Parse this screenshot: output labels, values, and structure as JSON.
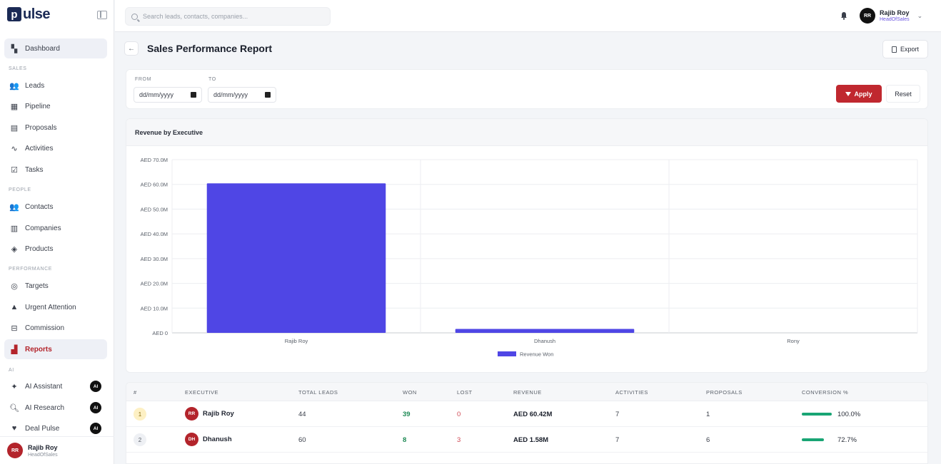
{
  "app": {
    "logo_letter": "p",
    "logo_text": "ulse"
  },
  "search": {
    "placeholder": "Search leads, contacts, companies..."
  },
  "user": {
    "initials": "RR",
    "name": "Rajib Roy",
    "role": "HeadOfSales"
  },
  "sidebar": {
    "dashboard": "Dashboard",
    "sections": {
      "sales": "SALES",
      "people": "PEOPLE",
      "performance": "PERFORMANCE",
      "ai": "AI"
    },
    "sales_items": [
      "Leads",
      "Pipeline",
      "Proposals",
      "Activities",
      "Tasks"
    ],
    "people_items": [
      "Contacts",
      "Companies",
      "Products"
    ],
    "performance_items": [
      "Targets",
      "Urgent Attention",
      "Commission",
      "Reports"
    ],
    "ai_items": [
      "AI Assistant",
      "AI Research",
      "Deal Pulse"
    ],
    "ai_badge": "AI"
  },
  "page": {
    "title": "Sales Performance Report",
    "back": "←",
    "export_label": "Export"
  },
  "filters": {
    "from_label": "FROM",
    "to_label": "TO",
    "from_value": "dd/mm/yyyy",
    "to_value": "dd/mm/yyyy",
    "apply_label": "Apply",
    "reset_label": "Reset"
  },
  "chart_card": {
    "title": "Revenue by Executive"
  },
  "chart_data": {
    "type": "bar",
    "categories": [
      "Rajib Roy",
      "Dhanush",
      "Rony"
    ],
    "series": [
      {
        "name": "Revenue Won",
        "values": [
          60.42,
          1.58,
          0
        ],
        "color": "#4f46e5"
      }
    ],
    "ylim": [
      0,
      70
    ],
    "yticks": [
      "AED 0",
      "AED 10.0M",
      "AED 20.0M",
      "AED 30.0M",
      "AED 40.0M",
      "AED 50.0M",
      "AED 60.0M",
      "AED 70.0M"
    ],
    "grid": true,
    "legend_position": "bottom"
  },
  "table": {
    "headers": [
      "#",
      "EXECUTIVE",
      "TOTAL LEADS",
      "WON",
      "LOST",
      "REVENUE",
      "ACTIVITIES",
      "PROPOSALS",
      "CONVERSION %"
    ],
    "rows": [
      {
        "rank": "1",
        "initials": "RR",
        "name": "Rajib Roy",
        "total": "44",
        "won": "39",
        "lost": "0",
        "revenue": "AED 60.42M",
        "activities": "7",
        "proposals": "1",
        "conversion": "100.0%",
        "conv_fraction": 1.0
      },
      {
        "rank": "2",
        "initials": "DH",
        "name": "Dhanush",
        "total": "60",
        "won": "8",
        "lost": "3",
        "revenue": "AED 1.58M",
        "activities": "7",
        "proposals": "6",
        "conversion": "72.7%",
        "conv_fraction": 0.727
      }
    ]
  }
}
